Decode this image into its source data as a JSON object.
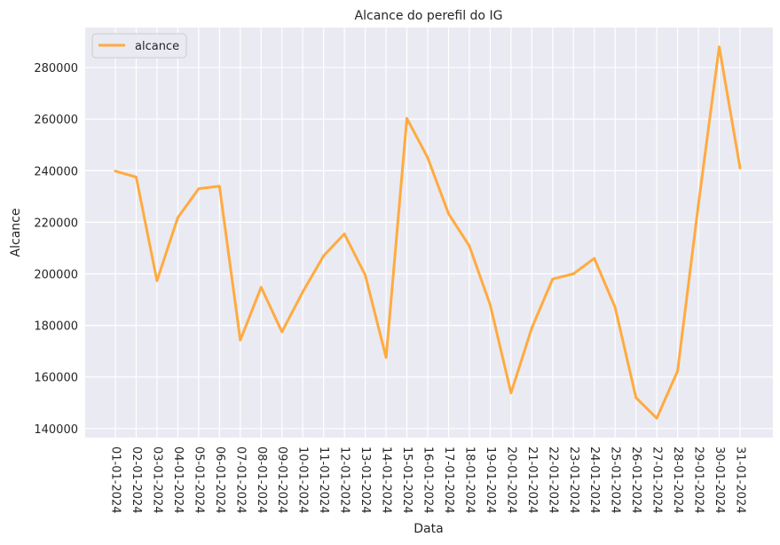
{
  "chart_data": {
    "type": "line",
    "title": "Alcance do perefil do IG",
    "xlabel": "Data",
    "ylabel": "Alcance",
    "x": [
      "01-01-2024",
      "02-01-2024",
      "03-01-2024",
      "04-01-2024",
      "05-01-2024",
      "06-01-2024",
      "07-01-2024",
      "08-01-2024",
      "09-01-2024",
      "10-01-2024",
      "11-01-2024",
      "12-01-2024",
      "13-01-2024",
      "14-01-2024",
      "15-01-2024",
      "16-01-2024",
      "17-01-2024",
      "18-01-2024",
      "19-01-2024",
      "20-01-2024",
      "21-01-2024",
      "22-01-2024",
      "23-01-2024",
      "24-01-2024",
      "25-01-2024",
      "26-01-2024",
      "27-01-2024",
      "28-01-2024",
      "29-01-2024",
      "30-01-2024",
      "31-01-2024"
    ],
    "series": [
      {
        "name": "alcance",
        "color": "#ffab40",
        "values": [
          239800,
          237500,
          197300,
          221800,
          233000,
          234000,
          174300,
          194800,
          177500,
          193000,
          207000,
          215500,
          199500,
          167500,
          260300,
          245000,
          223300,
          210800,
          188000,
          153800,
          179000,
          198000,
          200000,
          206000,
          187000,
          152000,
          144000,
          162300,
          227000,
          288000,
          241000
        ]
      }
    ],
    "yticks": [
      140000,
      160000,
      180000,
      200000,
      220000,
      240000,
      260000,
      280000
    ],
    "ylim": [
      136500,
      295500
    ],
    "grid": true,
    "legend_position": "top-left",
    "background_color": "#eaeaf2",
    "grid_color": "#ffffff"
  }
}
